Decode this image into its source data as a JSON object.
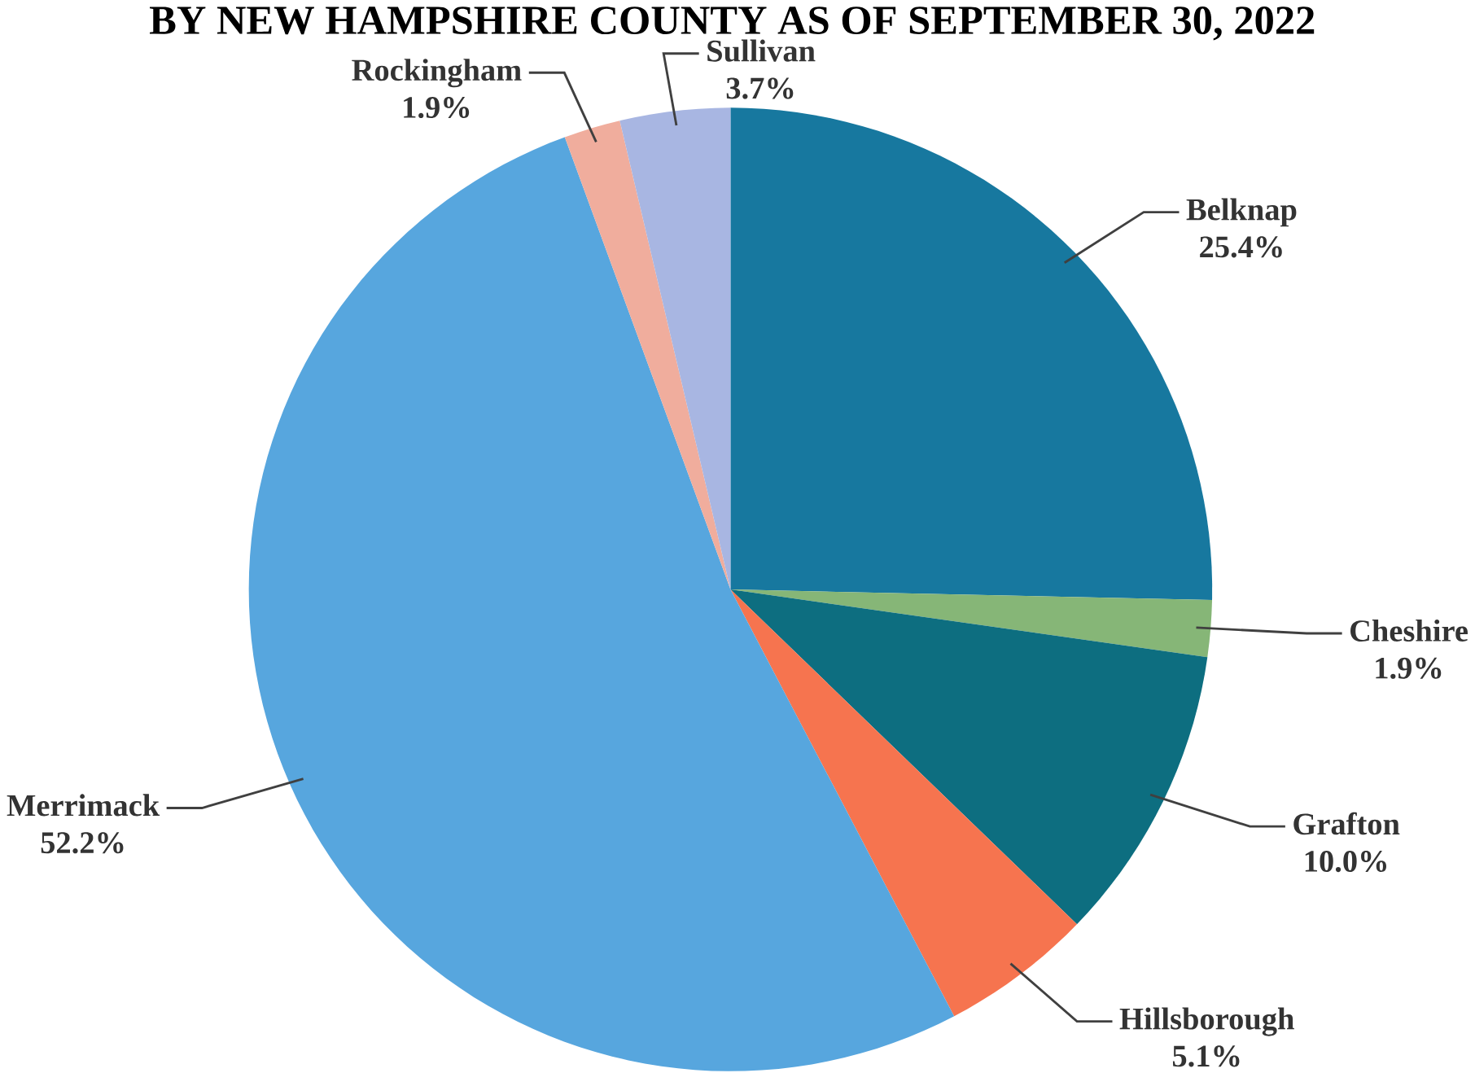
{
  "chart_data": {
    "type": "pie",
    "title": "BY NEW HAMPSHIRE COUNTY AS OF SEPTEMBER 30, 2022",
    "categories": [
      "Belknap",
      "Cheshire",
      "Grafton",
      "Hillsborough",
      "Merrimack",
      "Rockingham",
      "Sullivan"
    ],
    "values": [
      25.4,
      1.9,
      10.0,
      5.1,
      52.2,
      1.9,
      3.7
    ],
    "value_labels": [
      "25.4%",
      "1.9%",
      "10.0%",
      "5.1%",
      "52.2%",
      "1.9%",
      "3.7%"
    ],
    "colors": [
      "#17789f",
      "#86b677",
      "#0d6e80",
      "#f6744f",
      "#57a6de",
      "#f0ad9d",
      "#a8b6e2"
    ]
  }
}
